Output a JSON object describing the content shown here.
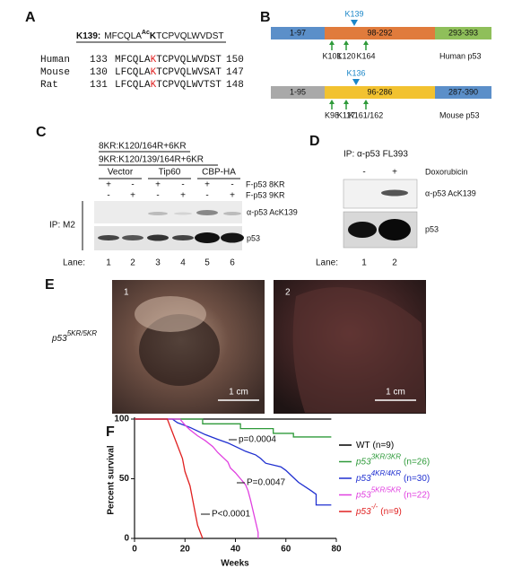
{
  "panels": {
    "A": {
      "label": "A",
      "header": {
        "site": "K139:",
        "seq_before": "MFCQLA",
        "mod": "Ac",
        "site_residue": "K",
        "seq_after": "TCPVQLWVDST"
      },
      "rows": [
        {
          "species": "Human",
          "start": "133",
          "before": "MFCQLA",
          "residue": "K",
          "after": "TCPVQLWVDST",
          "end": "150"
        },
        {
          "species": "Mouse",
          "start": "130",
          "before": "LFCQLA",
          "residue": "K",
          "after": "TCPVQLWVSAT",
          "end": "147"
        },
        {
          "species": "Rat",
          "start": "131",
          "before": "LFCQLA",
          "residue": "K",
          "after": "TCPVQLWVTST",
          "end": "148"
        }
      ]
    },
    "B": {
      "label": "B",
      "human": {
        "segments": [
          "1-97",
          "98-292",
          "293-393"
        ],
        "site": "K139",
        "sites": [
          "K101",
          "K120",
          "K164"
        ],
        "name": "Human p53"
      },
      "mouse": {
        "segments": [
          "1-95",
          "96-286",
          "287-390"
        ],
        "site": "K136",
        "sites": [
          "K98",
          "K117",
          "K161/162"
        ],
        "name": "Mouse p53"
      }
    },
    "C": {
      "label": "C",
      "constructs": [
        "8KR:K120/164R+6KR",
        "9KR:K120/139/164R+6KR"
      ],
      "groups": [
        "Vector",
        "Tip60",
        "CBP-HA"
      ],
      "row1": {
        "signs": [
          "+",
          "-",
          "+",
          "-",
          "+",
          "-"
        ],
        "label": "F-p53 8KR"
      },
      "row2": {
        "signs": [
          "-",
          "+",
          "-",
          "+",
          "-",
          "+"
        ],
        "label": "F-p53 9KR"
      },
      "blots": [
        "α-p53 AcK139",
        "p53"
      ],
      "ip": "IP: M2",
      "lane_label": "Lane:",
      "lanes": [
        "1",
        "2",
        "3",
        "4",
        "5",
        "6"
      ]
    },
    "D": {
      "label": "D",
      "ip": "IP: α-p53 FL393",
      "signs": [
        "-",
        "+"
      ],
      "treatment": "Doxorubicin",
      "blots": [
        "α-p53 AcK139",
        "p53"
      ],
      "lane_label": "Lane:",
      "lanes": [
        "1",
        "2"
      ]
    },
    "E": {
      "label": "E",
      "genotype": "p53",
      "genotype_sup": "5KR/5KR",
      "photos": [
        {
          "number": "1",
          "scale": "1 cm"
        },
        {
          "number": "2",
          "scale": "1 cm"
        }
      ]
    }
  },
  "chart_data": {
    "type": "line",
    "panel_label": "F",
    "x_label": "Weeks",
    "y_label": "Percent survival",
    "xlim": [
      0,
      80
    ],
    "xticks": [
      0,
      20,
      40,
      60,
      80
    ],
    "ylim": [
      0,
      100
    ],
    "yticks": [
      0,
      50,
      100
    ],
    "annotations": [
      "p=0.0004",
      "P=0.0047",
      "P<0.0001"
    ],
    "series": [
      {
        "name": "WT",
        "suffix": "(n=9)",
        "color": "#000000",
        "x": [
          0,
          78
        ],
        "values": [
          100,
          100
        ]
      },
      {
        "name": "p53",
        "sup": "3KR/3KR",
        "suffix": "(n=26)",
        "color": "#2e9a3a",
        "x": [
          0,
          27,
          27,
          42,
          42,
          55,
          55,
          63,
          63,
          78
        ],
        "values": [
          100,
          100,
          96,
          96,
          92,
          92,
          88,
          88,
          85,
          85
        ]
      },
      {
        "name": "p53",
        "sup": "4KR/4KR",
        "suffix": "(n=30)",
        "color": "#1f2fd0",
        "x": [
          0,
          15,
          17,
          22,
          25,
          28,
          33,
          37,
          40,
          44,
          48,
          50,
          52,
          58,
          60,
          62,
          65,
          70,
          72,
          72,
          78
        ],
        "values": [
          100,
          100,
          97,
          93,
          90,
          87,
          83,
          80,
          77,
          73,
          70,
          67,
          63,
          60,
          57,
          53,
          47,
          40,
          37,
          28,
          28
        ]
      },
      {
        "name": "p53",
        "sup": "5KR/5KR",
        "suffix": "(n=22)",
        "color": "#e040e0",
        "x": [
          0,
          18,
          20,
          22,
          25,
          28,
          31,
          33,
          35,
          37,
          38,
          40,
          42,
          44,
          45,
          46,
          47,
          48,
          49,
          49
        ],
        "values": [
          100,
          100,
          95,
          91,
          86,
          82,
          77,
          72,
          68,
          64,
          59,
          55,
          50,
          45,
          40,
          32,
          23,
          14,
          5,
          0
        ]
      },
      {
        "name": "p53",
        "sup": "-/-",
        "suffix": "(n=9)",
        "color": "#e02020",
        "x": [
          0,
          13,
          15,
          17,
          19,
          20,
          22,
          23,
          24,
          25,
          27
        ],
        "values": [
          100,
          100,
          89,
          78,
          67,
          56,
          44,
          33,
          22,
          11,
          0
        ]
      }
    ]
  }
}
